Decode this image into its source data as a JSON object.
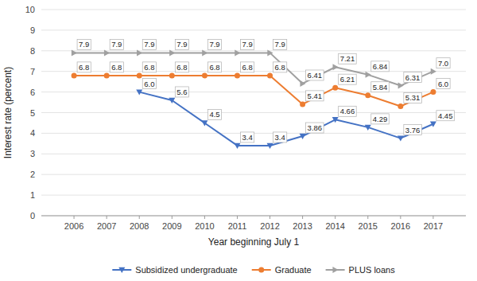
{
  "chart_data": {
    "type": "line",
    "x_label": "Year beginning July 1",
    "y_label": "Interest rate (percent)",
    "x": [
      2006,
      2007,
      2008,
      2009,
      2010,
      2011,
      2012,
      2013,
      2014,
      2015,
      2016,
      2017
    ],
    "series": [
      {
        "name": "Subsidized undergraduate",
        "color": "#4472C4",
        "marker": "triangle-down",
        "values": [
          null,
          null,
          6.0,
          5.6,
          4.5,
          3.4,
          3.4,
          3.86,
          4.66,
          4.29,
          3.76,
          4.45
        ],
        "value_labels": [
          null,
          null,
          "6.0",
          "5.6",
          "4.5",
          "3.4",
          "3.4",
          "3.86",
          "4.66",
          "4.29",
          "3.76",
          "4.45"
        ]
      },
      {
        "name": "Graduate",
        "color": "#ED7D31",
        "marker": "circle",
        "values": [
          6.8,
          6.8,
          6.8,
          6.8,
          6.8,
          6.8,
          6.8,
          5.41,
          6.21,
          5.84,
          5.31,
          6.0
        ],
        "value_labels": [
          "6.8",
          "6.8",
          "6.8",
          "6.8",
          "6.8",
          "6.8",
          "6.8",
          "5.41",
          "6.21",
          "5.84",
          "5.31",
          "6.0"
        ]
      },
      {
        "name": "PLUS loans",
        "color": "#A0A0A0",
        "marker": "triangle-right",
        "values": [
          7.9,
          7.9,
          7.9,
          7.9,
          7.9,
          7.9,
          7.9,
          6.41,
          7.21,
          6.84,
          6.31,
          7.0
        ],
        "value_labels": [
          "7.9",
          "7.9",
          "7.9",
          "7.9",
          "7.9",
          "7.9",
          "7.9",
          "6.41",
          "7.21",
          "6.84",
          "6.31",
          "7.0"
        ]
      }
    ],
    "xlim": [
      2005,
      2018
    ],
    "xticks": [
      2006,
      2007,
      2008,
      2009,
      2010,
      2011,
      2012,
      2013,
      2014,
      2015,
      2016,
      2017
    ],
    "ylim": [
      0,
      10
    ],
    "yticks": [
      0,
      1,
      2,
      3,
      4,
      5,
      6,
      7,
      8,
      9,
      10
    ],
    "grid": true,
    "legend": "bottom",
    "data_labels": true
  }
}
